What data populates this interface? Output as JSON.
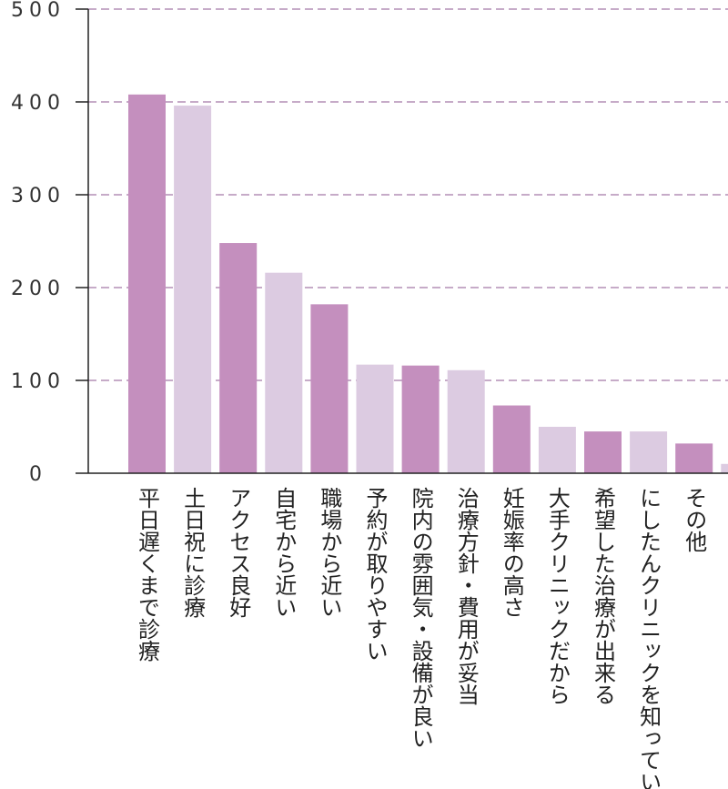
{
  "chart_data": {
    "type": "bar",
    "title": "",
    "xlabel": "",
    "ylabel": "",
    "ylim": [
      0,
      500
    ],
    "yticks": [
      0,
      100,
      200,
      300,
      400,
      500
    ],
    "grid": true,
    "legend": "none",
    "categories": [
      "平日遅くまで診療",
      "土日祝に診療",
      "アクセス良好",
      "自宅から近い",
      "職場から近い",
      "予約が取りやすい",
      "院内の雰囲気・設備が良い",
      "治療方針・費用が妥当",
      "妊娠率の高さ",
      "大手クリニックだから",
      "希望した治療が出来る",
      "にしたんクリニックを知っていた",
      "その他",
      ""
    ],
    "values": [
      408,
      396,
      248,
      216,
      182,
      117,
      116,
      111,
      73,
      50,
      45,
      45,
      32,
      10
    ],
    "colors": {
      "dark": "#c48fbe",
      "light": "#dccbe1",
      "grid": "#b38fb6",
      "axis": "#222222"
    }
  }
}
